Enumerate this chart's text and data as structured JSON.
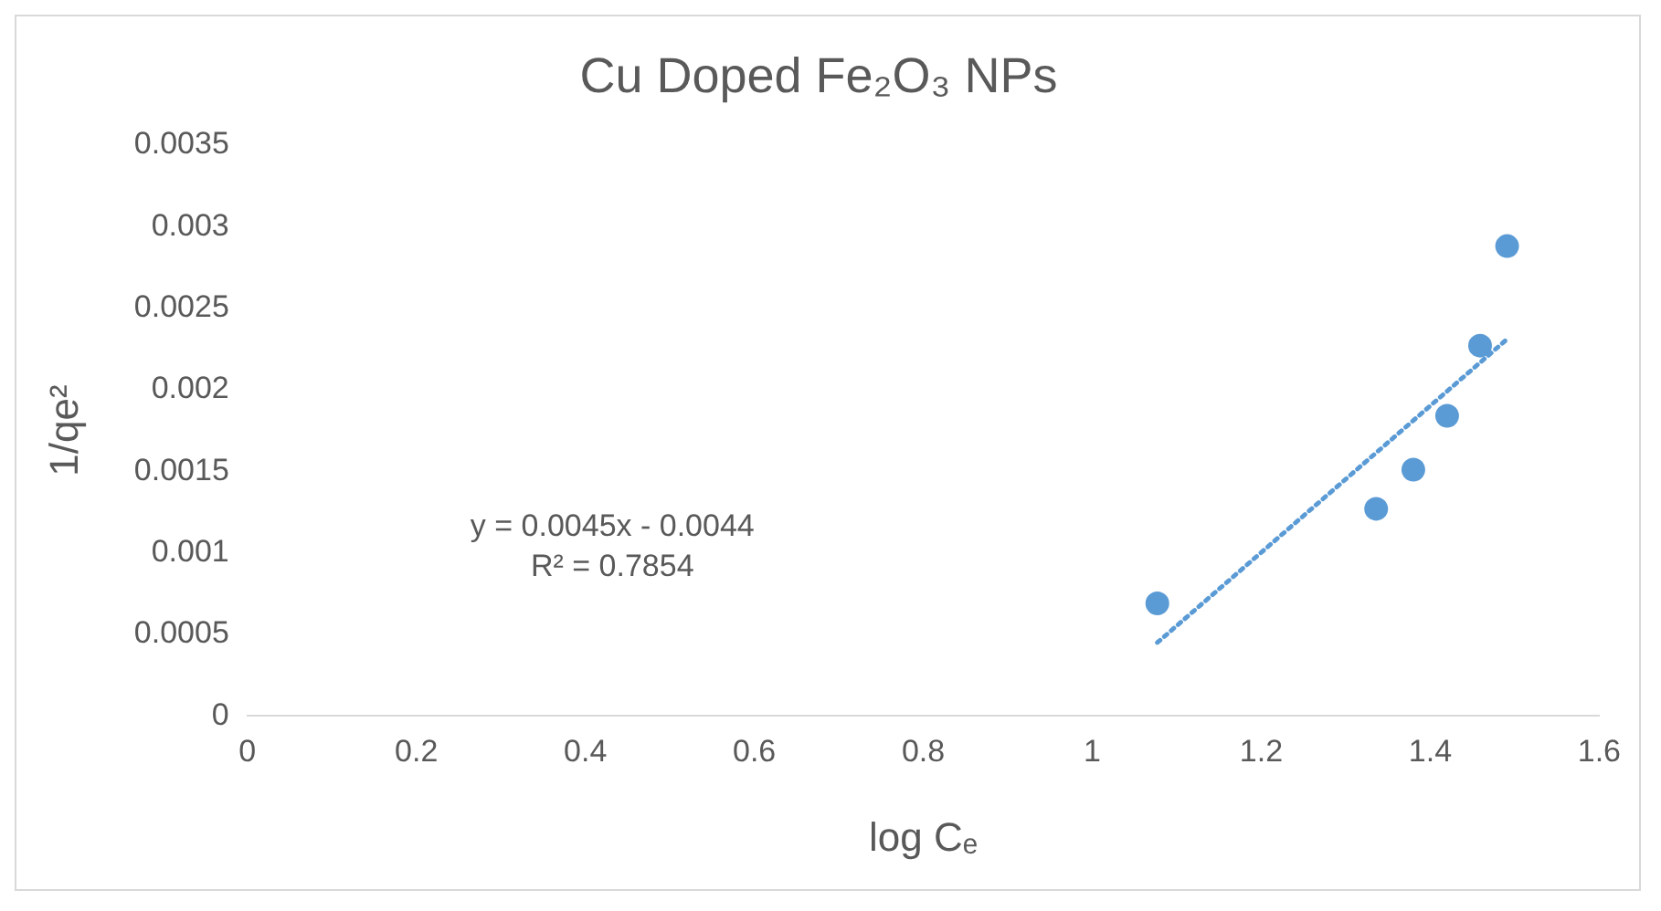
{
  "chart_data": {
    "type": "scatter",
    "title": "Cu Doped Fe₂O₃ NPs",
    "xlabel": "log Cₑ",
    "ylabel": "1/qe²",
    "annotations": [
      "y = 0.0045x - 0.0044",
      "R² = 0.7854"
    ],
    "series": [
      {
        "type": "scatter",
        "color": "#5b9bd5",
        "marker": "circle",
        "x": [
          1.077,
          1.336,
          1.38,
          1.42,
          1.459,
          1.491
        ],
        "values": [
          0.00069,
          0.00127,
          0.00151,
          0.00184,
          0.00227,
          0.00288
        ]
      },
      {
        "type": "line",
        "color": "#5b9bd5",
        "line_style": "dotted",
        "marker": "none",
        "x": [
          1.077,
          1.491
        ],
        "values": [
          0.00045,
          0.00231
        ]
      }
    ],
    "xlim": [
      0,
      1.6
    ],
    "xticks": [
      0,
      0.2,
      0.4,
      0.6,
      0.8,
      1,
      1.2,
      1.4,
      1.6
    ],
    "ylim": [
      0,
      0.0035
    ],
    "yticks": [
      0,
      0.0005,
      0.001,
      0.0015,
      0.002,
      0.0025,
      0.003,
      0.0035
    ],
    "grid": false,
    "legend": false
  }
}
